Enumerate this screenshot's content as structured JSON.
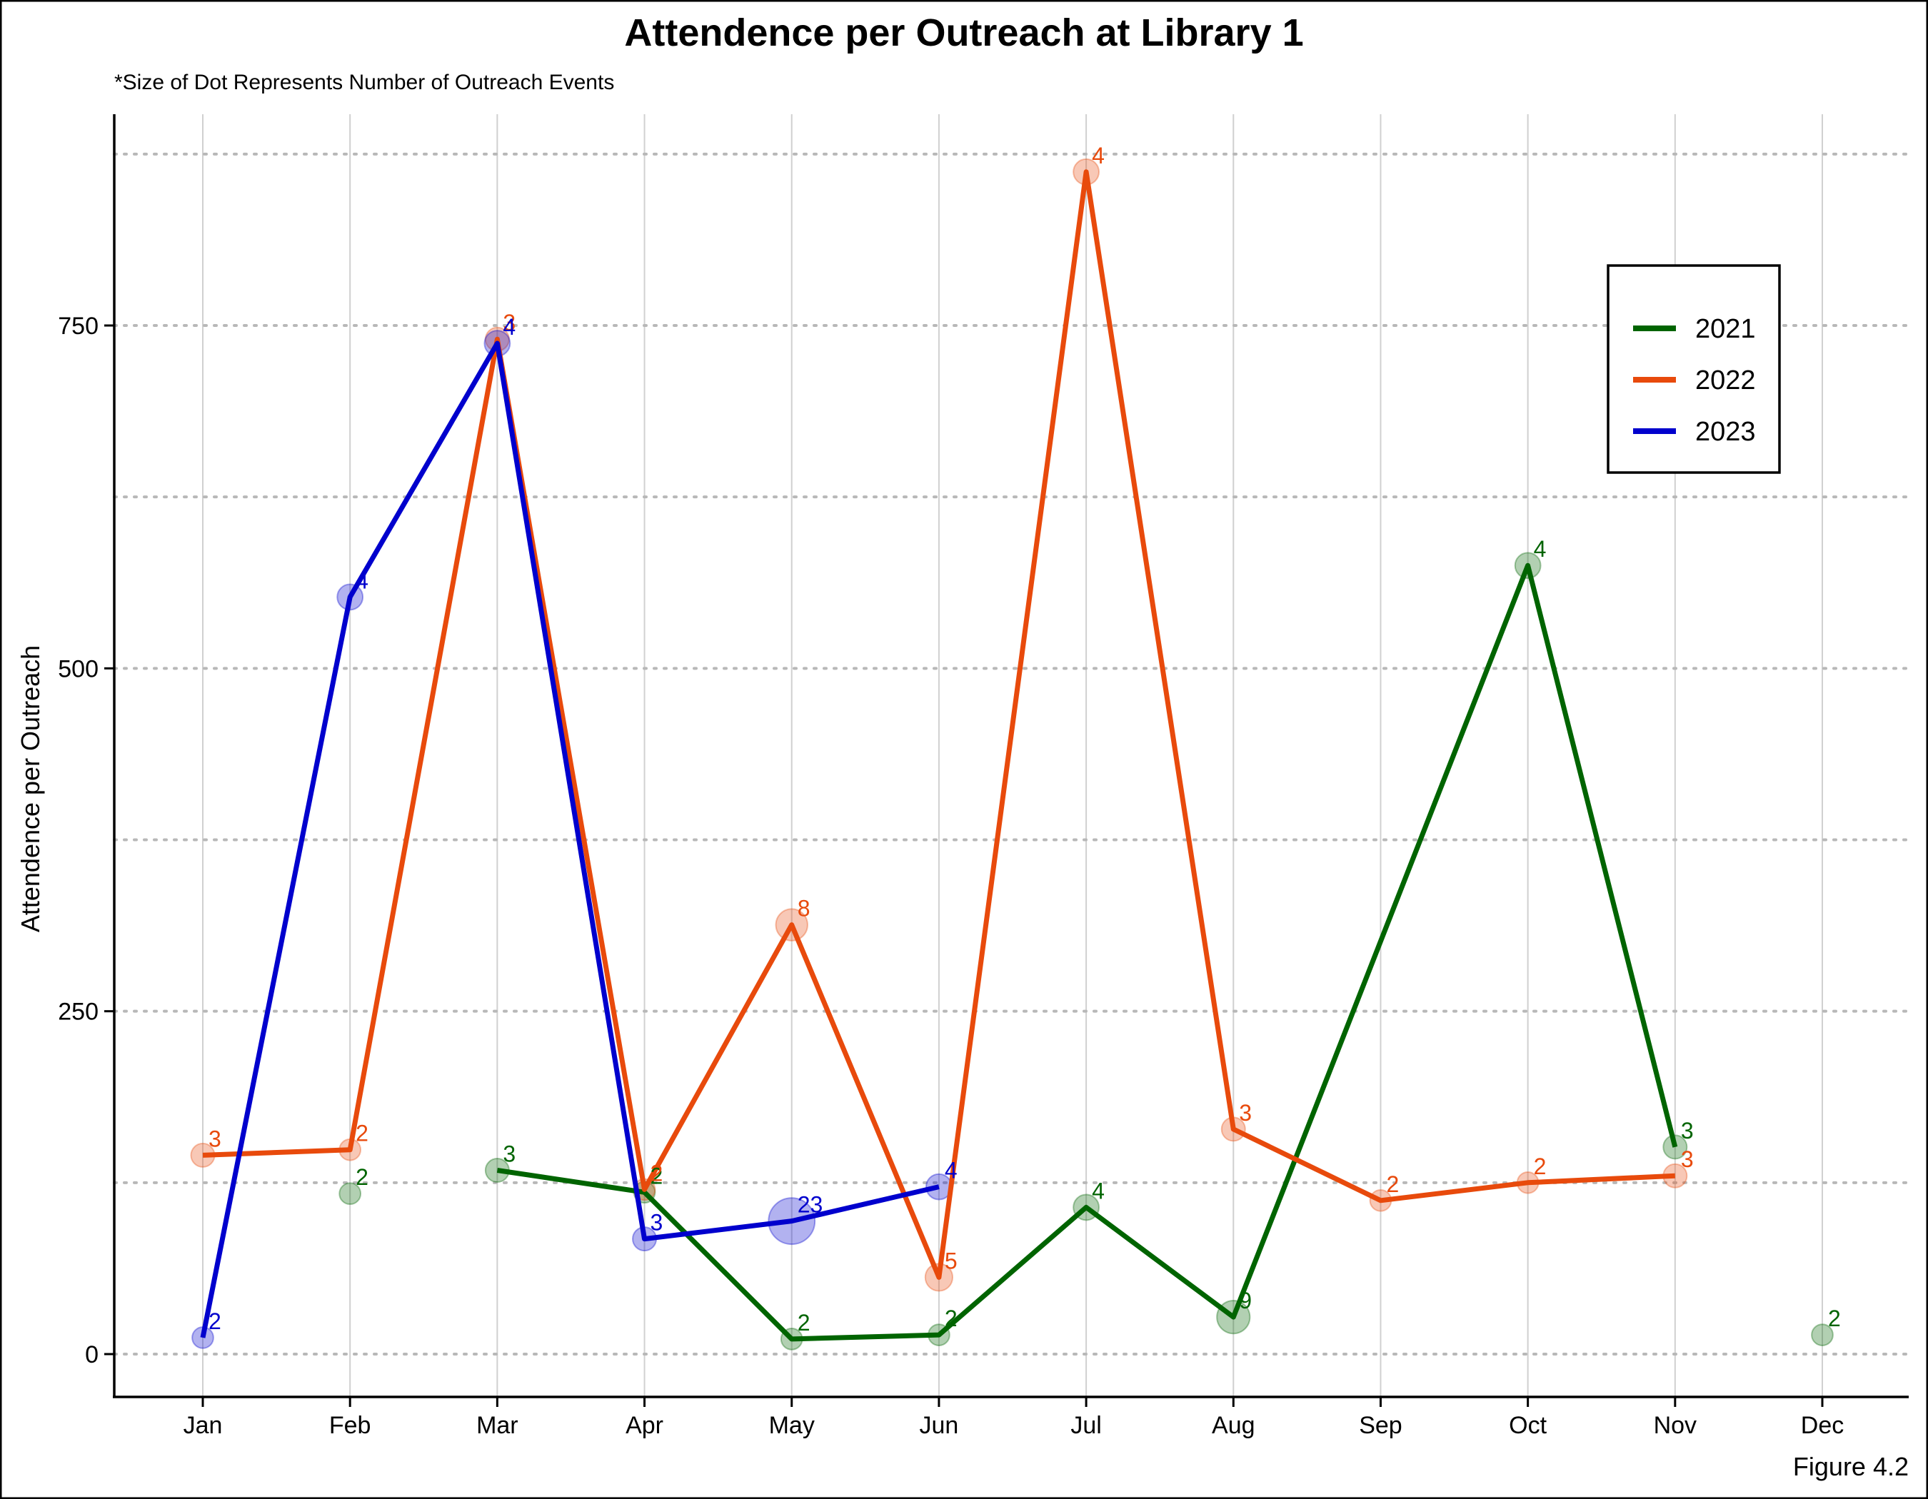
{
  "chart_data": {
    "type": "line",
    "title": "Attendence per Outreach at Library 1",
    "subtitle": "*Size of Dot Represents Number of Outreach Events",
    "caption": "Figure 4.2",
    "xlabel": "",
    "ylabel": "Attendence per Outreach",
    "categories": [
      "Jan",
      "Feb",
      "Mar",
      "Apr",
      "May",
      "Jun",
      "Jul",
      "Aug",
      "Sep",
      "Oct",
      "Nov",
      "Dec"
    ],
    "ylim": [
      -62.5,
      882
    ],
    "yticks": [
      0,
      250,
      500,
      750
    ],
    "minor_grid": [
      125,
      375,
      625,
      875
    ],
    "grid": true,
    "legend_position": "top-right",
    "series": [
      {
        "name": "2021",
        "color": "#006400",
        "segments": [
          [
            1,
            8
          ],
          [
            9,
            11
          ]
        ],
        "points": [
          {
            "x": "Feb",
            "y": 117,
            "events": 2
          },
          {
            "x": "Mar",
            "y": 134,
            "events": 3
          },
          {
            "x": "Apr",
            "y": 118,
            "events": 2
          },
          {
            "x": "May",
            "y": 11,
            "events": 2
          },
          {
            "x": "Jun",
            "y": 14,
            "events": 2
          },
          {
            "x": "Jul",
            "y": 107,
            "events": 4
          },
          {
            "x": "Aug",
            "y": 27,
            "events": 9
          },
          {
            "x": "Oct",
            "y": 575,
            "events": 4
          },
          {
            "x": "Nov",
            "y": 151,
            "events": 3
          },
          {
            "x": "Dec",
            "y": 14,
            "events": 2
          }
        ]
      },
      {
        "name": "2022",
        "color": "#E84A0C",
        "segments": [
          [
            0,
            11
          ]
        ],
        "points": [
          {
            "x": "Jan",
            "y": 145,
            "events": 3
          },
          {
            "x": "Feb",
            "y": 149,
            "events": 2
          },
          {
            "x": "Mar",
            "y": 740,
            "events": 3
          },
          {
            "x": "Apr",
            "y": 120,
            "events": 2
          },
          {
            "x": "May",
            "y": 313,
            "events": 8
          },
          {
            "x": "Jun",
            "y": 56,
            "events": 5
          },
          {
            "x": "Jul",
            "y": 862,
            "events": 4
          },
          {
            "x": "Aug",
            "y": 164,
            "events": 3
          },
          {
            "x": "Sep",
            "y": 112,
            "events": 2
          },
          {
            "x": "Oct",
            "y": 125,
            "events": 2
          },
          {
            "x": "Nov",
            "y": 130,
            "events": 3
          }
        ]
      },
      {
        "name": "2023",
        "color": "#0000CD",
        "segments": [
          [
            0,
            5
          ]
        ],
        "points": [
          {
            "x": "Jan",
            "y": 12,
            "events": 2
          },
          {
            "x": "Feb",
            "y": 552,
            "events": 4
          },
          {
            "x": "Mar",
            "y": 737,
            "events": 4
          },
          {
            "x": "Apr",
            "y": 84,
            "events": 3
          },
          {
            "x": "May",
            "y": 97,
            "events": 23
          },
          {
            "x": "Jun",
            "y": 122,
            "events": 4
          }
        ]
      }
    ]
  }
}
